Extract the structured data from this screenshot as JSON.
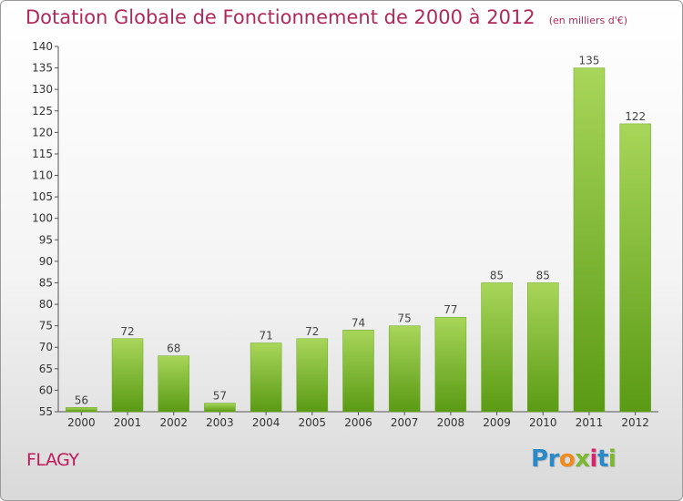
{
  "title": "Dotation Globale de Fonctionnement de 2000 à 2012",
  "subtitle": "(en milliers d'€)",
  "commune": "FLAGY",
  "logo": {
    "text": "Proxiti",
    "letters": [
      {
        "char": "P",
        "color": "#2b89c8"
      },
      {
        "char": "r",
        "color": "#2b89c8"
      },
      {
        "char": "o",
        "color": "#f08a1c"
      },
      {
        "char": "x",
        "color": "#7cb82f"
      },
      {
        "char": "i",
        "color": "#d6246e"
      },
      {
        "char": "t",
        "color": "#2b89c8"
      },
      {
        "char": "i",
        "color": "#7cb82f"
      }
    ]
  },
  "colors": {
    "title": "#b0295a",
    "bar_light": "#a8d65a",
    "bar_dark": "#5a9a14",
    "axis": "#555555"
  },
  "chart_data": {
    "type": "bar",
    "title": "Dotation Globale de Fonctionnement de 2000 à 2012",
    "subtitle": "(en milliers d'€)",
    "categories": [
      "2000",
      "2001",
      "2002",
      "2003",
      "2004",
      "2005",
      "2006",
      "2007",
      "2008",
      "2009",
      "2010",
      "2011",
      "2012"
    ],
    "values": [
      56,
      72,
      68,
      57,
      71,
      72,
      74,
      75,
      77,
      85,
      85,
      135,
      122
    ],
    "data_labels": [
      "56",
      "72",
      "68",
      "57",
      "71",
      "72",
      "74",
      "75",
      "77",
      "85",
      "85",
      "135",
      "122"
    ],
    "xlabel": "",
    "ylabel": "",
    "ylim": [
      55,
      140
    ],
    "yticks": [
      55,
      60,
      65,
      70,
      75,
      80,
      85,
      90,
      95,
      100,
      105,
      110,
      115,
      120,
      125,
      130,
      135,
      140
    ],
    "grid": false,
    "legend": "none"
  }
}
